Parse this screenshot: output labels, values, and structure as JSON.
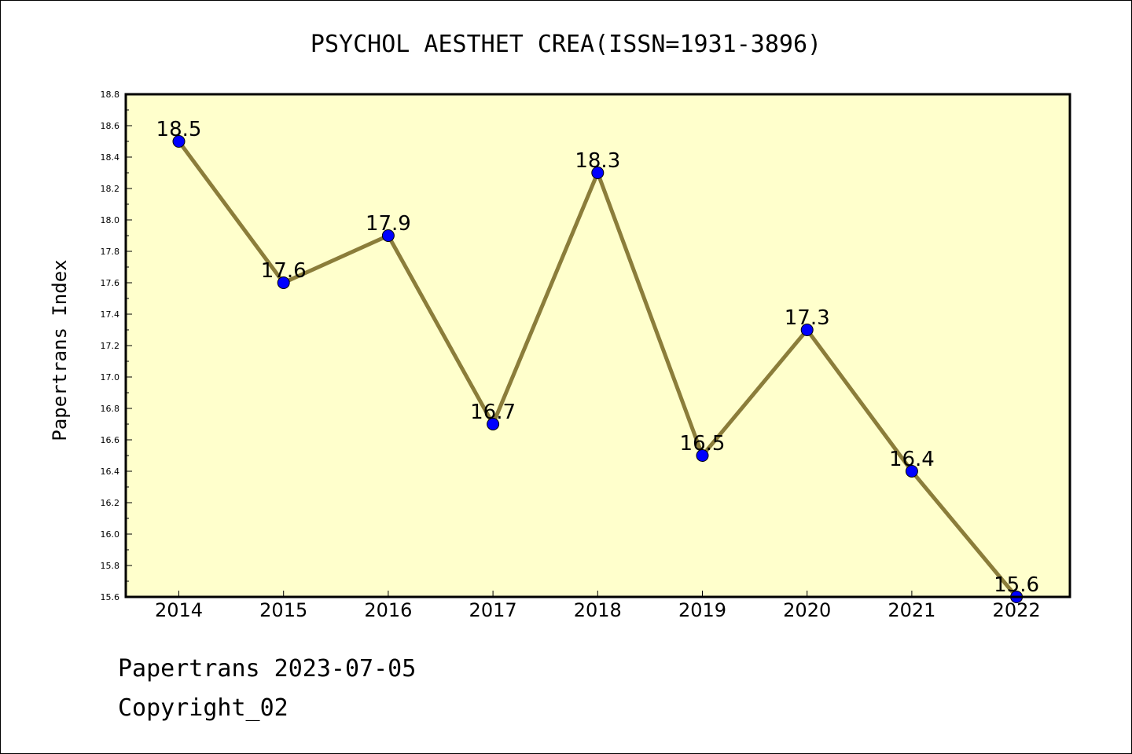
{
  "chart_data": {
    "type": "line",
    "title": "PSYCHOL AESTHET CREA(ISSN=1931-3896)",
    "xlabel": "",
    "ylabel": "Papertrans Index",
    "x": [
      "2014",
      "2015",
      "2016",
      "2017",
      "2018",
      "2019",
      "2020",
      "2021",
      "2022"
    ],
    "values": [
      18.5,
      17.6,
      17.9,
      16.7,
      18.3,
      16.5,
      17.3,
      16.4,
      15.6
    ],
    "data_labels": [
      "18.5",
      "17.6",
      "17.9",
      "16.7",
      "18.3",
      "16.5",
      "17.3",
      "16.4",
      "15.6"
    ],
    "ylim": [
      15.6,
      18.8
    ],
    "yticks": [
      "15.6",
      "15.8",
      "16.0",
      "16.2",
      "16.4",
      "16.6",
      "16.8",
      "17.0",
      "17.2",
      "17.4",
      "17.6",
      "17.8",
      "18.0",
      "18.2",
      "18.4",
      "18.6",
      "18.8"
    ],
    "grid": false,
    "colors": {
      "plot_background": "#ffffcc",
      "line": "#8b7d3a",
      "marker": "#0000ff",
      "marker_edge": "#000000"
    }
  },
  "footer": {
    "line1": "Papertrans 2023-07-05",
    "line2": "Copyright_02"
  }
}
